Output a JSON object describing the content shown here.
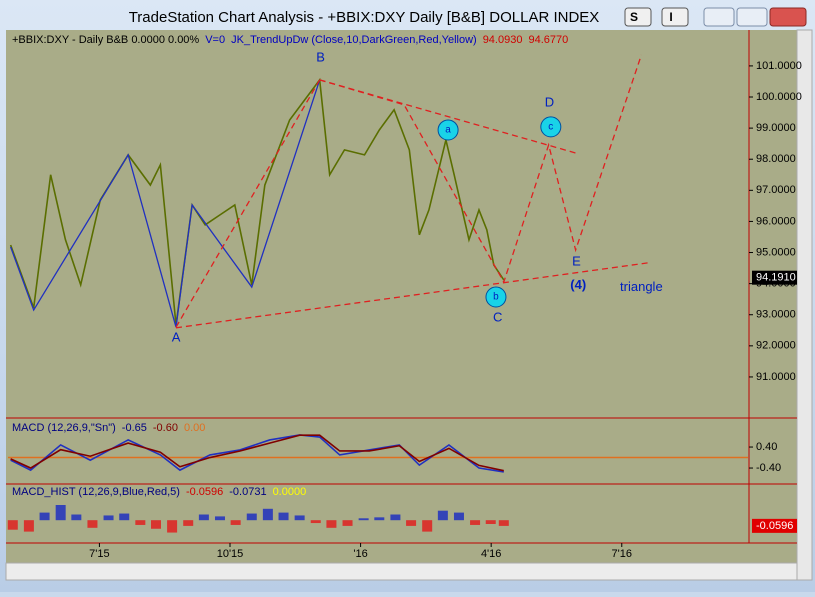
{
  "window": {
    "title": "TradeStation Chart Analysis - +BBIX:DXY Daily [B&B] DOLLAR INDEX",
    "buttons": [
      "S",
      "I"
    ]
  },
  "chart_data": [
    {
      "type": "line",
      "header": [
        {
          "text": "+BBIX:DXY - Daily  B&B  0.0000  0.00%",
          "color": "#000000"
        },
        {
          "text": "V=0",
          "color": "#0000c0"
        },
        {
          "text": "JK_TrendUpDw (Close,10,DarkGreen,Red,Yellow)",
          "color": "#0000c0"
        },
        {
          "text": "94.0930",
          "color": "#d00000"
        },
        {
          "text": "94.6770",
          "color": "#d00000"
        }
      ],
      "x": [
        3.96,
        4.49,
        4.88,
        5.22,
        5.57,
        6.02,
        6.66,
        7.17,
        7.4,
        7.76,
        8.13,
        8.43,
        8.77,
        9.11,
        9.5,
        9.8,
        10.37,
        11.06,
        11.29,
        11.63,
        12.09,
        12.43,
        12.77,
        13.12,
        13.35,
        13.57,
        13.96,
        14.15,
        14.49,
        14.72,
        14.9,
        15.06,
        15.29
      ],
      "series": [
        {
          "color": "#5a6e00",
          "values": [
            95.24,
            93.22,
            97.5,
            95.41,
            93.96,
            96.69,
            98.14,
            97.17,
            97.82,
            92.67,
            96.53,
            95.89,
            96.21,
            96.53,
            93.96,
            97.17,
            99.26,
            100.55,
            97.5,
            98.3,
            98.14,
            98.94,
            99.59,
            98.3,
            95.57,
            96.37,
            98.62,
            97.5,
            95.41,
            96.37,
            95.73,
            94.6,
            94.12
          ]
        }
      ],
      "lines": [
        {
          "color": "#2030c0",
          "dashed": false,
          "x": [
            3.96,
            4.49,
            6.66,
            7.76,
            8.13,
            9.5,
            11.06
          ],
          "y": [
            95.18,
            93.15,
            98.14,
            92.6,
            96.53,
            93.89,
            100.55
          ]
        },
        {
          "color": "#e02020",
          "dashed": true,
          "x": [
            7.76,
            11.06
          ],
          "y": [
            92.6,
            100.55
          ]
        },
        {
          "color": "#e02020",
          "dashed": true,
          "x": [
            11.06,
            13.0,
            15.29,
            16.32,
            16.94,
            18.45
          ],
          "y": [
            100.55,
            99.75,
            94.05,
            98.46,
            95.08,
            101.35
          ]
        },
        {
          "color": "#e02020",
          "dashed": true,
          "x": [
            7.76,
            18.61
          ],
          "y": [
            92.58,
            94.67
          ]
        },
        {
          "color": "#e02020",
          "dashed": true,
          "x": [
            11.06,
            16.94
          ],
          "y": [
            100.55,
            98.2
          ]
        }
      ],
      "annotations": [
        {
          "text": "A",
          "x": 7.76,
          "y": 92.25,
          "circle": false
        },
        {
          "text": "B",
          "x": 11.08,
          "y": 101.26,
          "circle": false
        },
        {
          "text": "C",
          "x": 15.15,
          "y": 92.9,
          "circle": false
        },
        {
          "text": "D",
          "x": 16.34,
          "y": 99.81,
          "circle": false
        },
        {
          "text": "E",
          "x": 16.96,
          "y": 94.7,
          "circle": false
        },
        {
          "text": "(4)",
          "x": 17.0,
          "y": 93.93,
          "circle": false
        },
        {
          "text": "triangle",
          "x": 18.45,
          "y": 93.87,
          "circle": false
        },
        {
          "text": "a",
          "x": 14.01,
          "y": 98.94,
          "circle": true
        },
        {
          "text": "b",
          "x": 15.11,
          "y": 93.57,
          "circle": true
        },
        {
          "text": "c",
          "x": 16.37,
          "y": 99.04,
          "circle": true
        }
      ],
      "xlim": [
        3.9,
        20.9
      ],
      "ylim": [
        89.68,
        102.09
      ],
      "yticks": [
        {
          "value": 91,
          "label": "91.0000"
        },
        {
          "value": 92,
          "label": "92.0000"
        },
        {
          "value": 93,
          "label": "93.0000"
        },
        {
          "value": 94,
          "label": "94.0000"
        },
        {
          "value": 95,
          "label": "95.0000"
        },
        {
          "value": 96,
          "label": "96.0000"
        },
        {
          "value": 97,
          "label": "97.0000"
        },
        {
          "value": 98,
          "label": "98.0000"
        },
        {
          "value": 99,
          "label": "99.0000"
        },
        {
          "value": 100,
          "label": "100.0000"
        },
        {
          "value": 101,
          "label": "101.0000"
        }
      ],
      "last": {
        "value": 94.191,
        "label": "94.1910"
      }
    },
    {
      "type": "line",
      "header": [
        {
          "text": "MACD (12,26,9,\"Sn\")",
          "color": "#000080"
        },
        {
          "text": "-0.65",
          "color": "#000080"
        },
        {
          "text": "-0.60",
          "color": "#800000"
        },
        {
          "text": "0.00",
          "color": "#e07020"
        }
      ],
      "x": [
        3.96,
        4.42,
        5.11,
        5.79,
        6.66,
        7.4,
        7.85,
        8.54,
        9.23,
        9.91,
        10.6,
        11.06,
        11.52,
        12.2,
        12.89,
        13.35,
        14.03,
        14.72,
        15.29
      ],
      "series": [
        {
          "color": "#2030c0",
          "values": [
            -0.1,
            -0.48,
            0.48,
            -0.1,
            0.67,
            0.1,
            -0.48,
            0.1,
            0.29,
            0.67,
            0.86,
            0.78,
            0.1,
            0.29,
            0.48,
            -0.29,
            0.48,
            -0.4,
            -0.55
          ]
        },
        {
          "color": "#800000",
          "values": [
            -0.05,
            -0.4,
            0.3,
            0.05,
            0.55,
            0.2,
            -0.35,
            0.0,
            0.25,
            0.55,
            0.85,
            0.85,
            0.25,
            0.25,
            0.45,
            -0.15,
            0.35,
            -0.3,
            -0.5
          ]
        }
      ],
      "zero_line_color": "#e07020",
      "xlim": [
        3.9,
        20.9
      ],
      "ylim": [
        -0.97,
        1.43
      ],
      "yticks": [
        {
          "value": 0.4,
          "label": "0.40"
        },
        {
          "value": -0.4,
          "label": "-0.40"
        }
      ]
    },
    {
      "type": "bar",
      "header": [
        {
          "text": "MACD_HIST (12,26,9,Blue,Red,5)",
          "color": "#000080"
        },
        {
          "text": "-0.0596",
          "color": "#d00000"
        },
        {
          "text": "-0.0731",
          "color": "#000080"
        },
        {
          "text": "0.0000",
          "color": "#ffff00"
        }
      ],
      "x": [
        4.01,
        4.38,
        4.74,
        5.11,
        5.47,
        5.84,
        6.21,
        6.57,
        6.94,
        7.3,
        7.67,
        8.04,
        8.4,
        8.77,
        9.13,
        9.5,
        9.87,
        10.23,
        10.6,
        10.97,
        11.33,
        11.7,
        12.07,
        12.43,
        12.8,
        13.16,
        13.53,
        13.89,
        14.26,
        14.63,
        14.99,
        15.29
      ],
      "values": [
        -0.1,
        -0.12,
        0.08,
        0.16,
        0.06,
        -0.08,
        0.05,
        0.07,
        -0.05,
        -0.09,
        -0.13,
        -0.06,
        0.06,
        0.04,
        -0.05,
        0.07,
        0.12,
        0.08,
        0.05,
        -0.03,
        -0.08,
        -0.06,
        0.02,
        0.03,
        0.06,
        -0.06,
        -0.12,
        0.1,
        0.08,
        -0.05,
        -0.04,
        -0.06
      ],
      "up_color": "#2030c0",
      "down_color": "#e02020",
      "xlim": [
        3.9,
        20.9
      ],
      "ylim": [
        -0.24,
        0.36
      ],
      "xticks": [
        {
          "value": 6,
          "label": "7'15"
        },
        {
          "value": 9,
          "label": "10'15"
        },
        {
          "value": 12,
          "label": "'16"
        },
        {
          "value": 15,
          "label": "4'16"
        },
        {
          "value": 18,
          "label": "7'16"
        }
      ],
      "last": {
        "value": -0.0596,
        "label": "-0.0596"
      }
    }
  ]
}
